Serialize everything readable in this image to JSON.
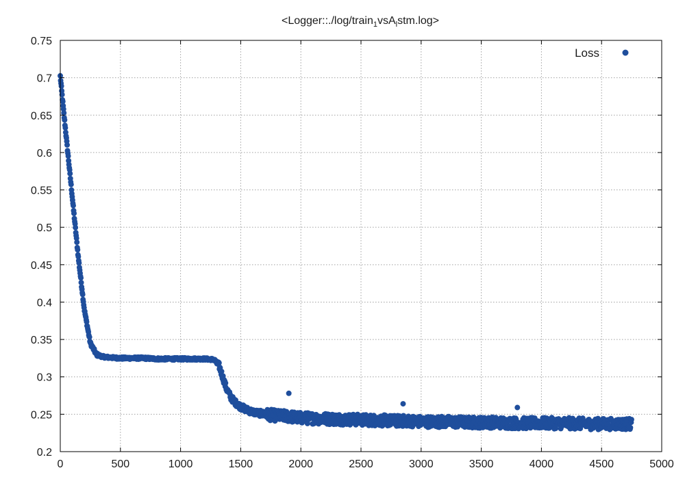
{
  "chart_data": {
    "type": "scatter",
    "title": {
      "prefix": "<Logger::./log/train",
      "sub1": "1",
      "middle": "vsA",
      "sub2": "l",
      "suffix": "stm.log>"
    },
    "xlabel": "",
    "ylabel": "",
    "xlim": [
      0,
      5000
    ],
    "ylim": [
      0.2,
      0.75
    ],
    "x_ticks": [
      0,
      500,
      1000,
      1500,
      2000,
      2500,
      3000,
      3500,
      4000,
      4500,
      5000
    ],
    "x_tick_labels": [
      "0",
      "500",
      "1000",
      "1500",
      "2000",
      "2500",
      "3000",
      "3500",
      "4000",
      "4500",
      "5000"
    ],
    "y_ticks": [
      0.2,
      0.25,
      0.3,
      0.35,
      0.4,
      0.45,
      0.5,
      0.55,
      0.6,
      0.65,
      0.7,
      0.75
    ],
    "y_tick_labels": [
      "0.2",
      "0.25",
      "0.3",
      "0.35",
      "0.4",
      "0.45",
      "0.5",
      "0.55",
      "0.6",
      "0.65",
      "0.7",
      "0.75"
    ],
    "grid": true,
    "legend": {
      "position": "top-right"
    },
    "marker_color": "#1f4e9c",
    "series": [
      {
        "name": "Loss",
        "x": [
          0,
          25,
          50,
          100,
          150,
          200,
          250,
          300,
          350,
          400,
          500,
          600,
          700,
          800,
          900,
          1000,
          1100,
          1200,
          1280,
          1320,
          1350,
          1380,
          1420,
          1460,
          1500,
          1550,
          1600,
          1700,
          1800,
          1900,
          1950,
          2000,
          2200,
          2400,
          2600,
          2800,
          2850,
          2900,
          3000,
          3200,
          3400,
          3600,
          3800,
          4000,
          4200,
          4400,
          4600,
          4750
        ],
        "y": [
          0.702,
          0.66,
          0.62,
          0.54,
          0.46,
          0.39,
          0.345,
          0.33,
          0.327,
          0.326,
          0.325,
          0.325,
          0.325,
          0.324,
          0.324,
          0.324,
          0.324,
          0.324,
          0.323,
          0.315,
          0.3,
          0.285,
          0.272,
          0.265,
          0.26,
          0.256,
          0.253,
          0.25,
          0.248,
          0.247,
          0.246,
          0.245,
          0.244,
          0.243,
          0.242,
          0.241,
          0.241,
          0.241,
          0.24,
          0.24,
          0.239,
          0.239,
          0.238,
          0.238,
          0.238,
          0.237,
          0.237,
          0.237
        ],
        "outliers": [
          {
            "x": 1900,
            "y": 0.278
          },
          {
            "x": 2850,
            "y": 0.264
          },
          {
            "x": 3800,
            "y": 0.259
          }
        ]
      }
    ]
  }
}
